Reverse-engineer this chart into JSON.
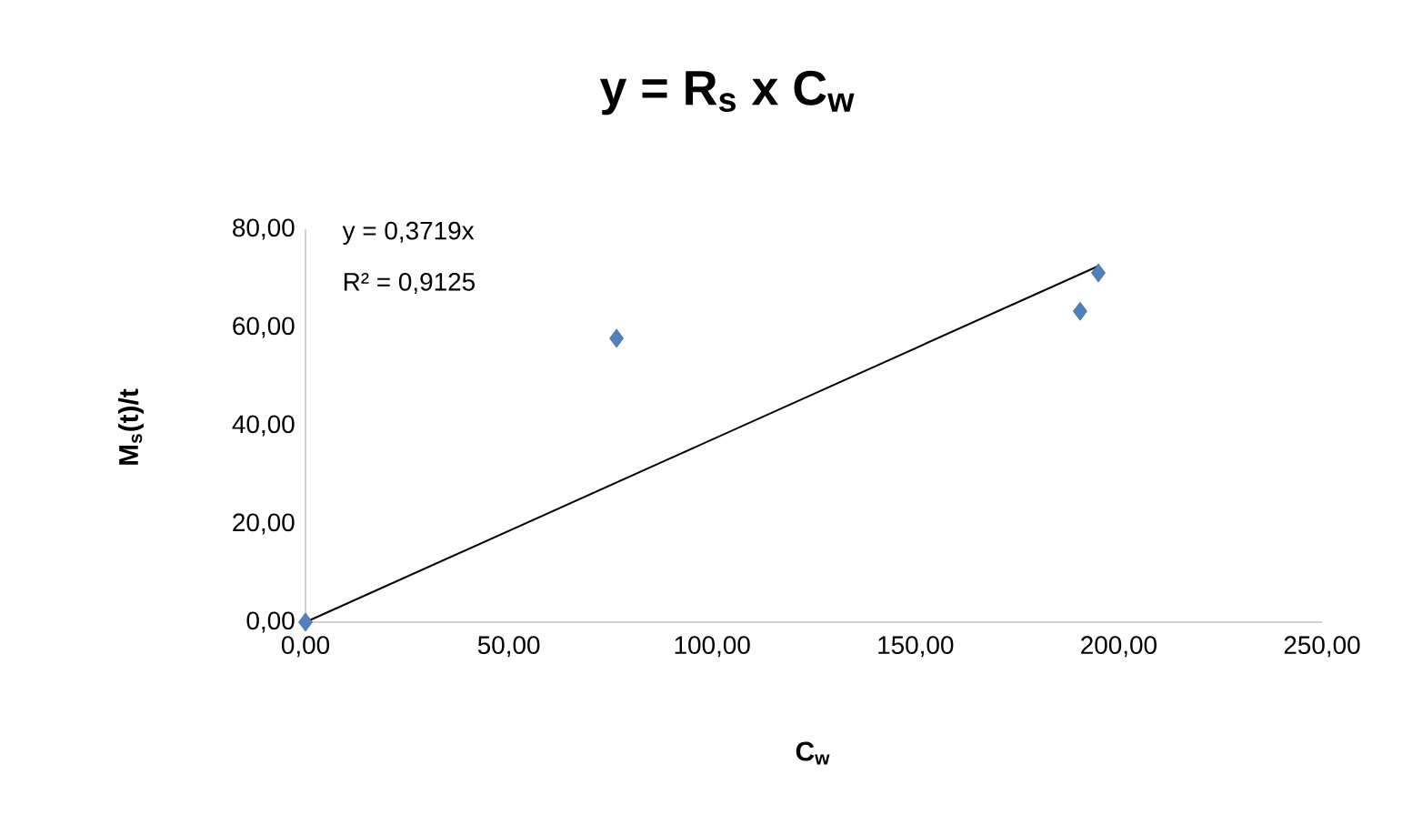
{
  "chart_data": {
    "type": "scatter",
    "title": "y = R$_{s}$ x C$_{w}$",
    "xlabel": "C$_{w}$",
    "ylabel": "M$_{s}$(t)/t",
    "annotations": [
      "y = 0,3719x",
      "R² = 0,9125"
    ],
    "series": [
      {
        "color": "#4f81bd",
        "marker": "diamond",
        "x": [
          0,
          76.5,
          190.5,
          195
        ],
        "values": [
          0,
          57.8,
          63.3,
          71.1
        ]
      },
      {
        "type": "line",
        "color": "#000000",
        "marker": "none",
        "x": [
          0,
          195
        ],
        "values": [
          0,
          72.5
        ]
      }
    ],
    "xlim": [
      0,
      250
    ],
    "ylim": [
      0,
      80
    ],
    "xticks": [
      {
        "value": 0,
        "label": "0,00"
      },
      {
        "value": 50,
        "label": "50,00"
      },
      {
        "value": 100,
        "label": "100,00"
      },
      {
        "value": 150,
        "label": "150,00"
      },
      {
        "value": 200,
        "label": "200,00"
      },
      {
        "value": 250,
        "label": "250,00"
      }
    ],
    "yticks": [
      {
        "value": 0,
        "label": "0,00"
      },
      {
        "value": 20,
        "label": "20,00"
      },
      {
        "value": 40,
        "label": "40,00"
      },
      {
        "value": 60,
        "label": "60,00"
      },
      {
        "value": 80,
        "label": "80,00"
      }
    ],
    "grid": false
  }
}
